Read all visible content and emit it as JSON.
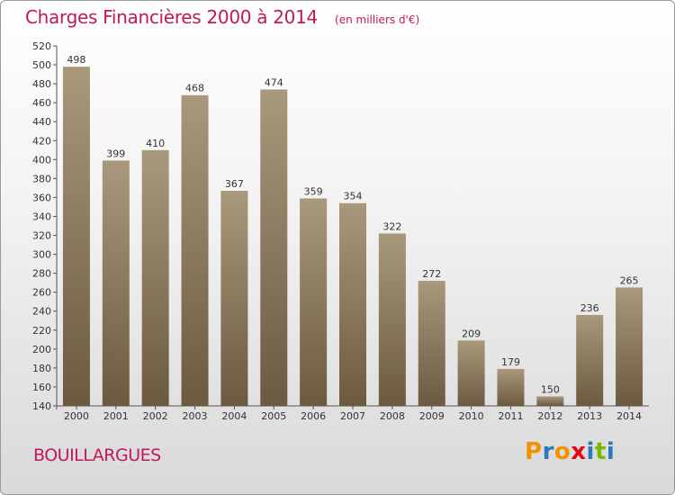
{
  "chart_data": {
    "type": "bar",
    "title": "Charges Financières 2000 à 2014",
    "subtitle": "(en milliers d'€)",
    "categories": [
      "2000",
      "2001",
      "2002",
      "2003",
      "2004",
      "2005",
      "2006",
      "2007",
      "2008",
      "2009",
      "2010",
      "2011",
      "2012",
      "2013",
      "2014"
    ],
    "values": [
      498,
      399,
      410,
      468,
      367,
      474,
      359,
      354,
      322,
      272,
      209,
      179,
      150,
      236,
      265
    ],
    "ylim": [
      140,
      520
    ],
    "ytick_step": 20,
    "grid": false,
    "legend": "none",
    "bar_color_top": "#a8987c",
    "bar_color_bottom": "#6b5a40"
  },
  "footer": {
    "place": "BOUILLARGUES",
    "logo_letters": [
      "P",
      "r",
      "o",
      "x",
      "i",
      "t",
      "i"
    ],
    "logo_colors": [
      "#f39200",
      "#2a7ab8",
      "#f39200",
      "#e30613",
      "#2a7ab8",
      "#7ab800",
      "#2a7ab8"
    ]
  }
}
